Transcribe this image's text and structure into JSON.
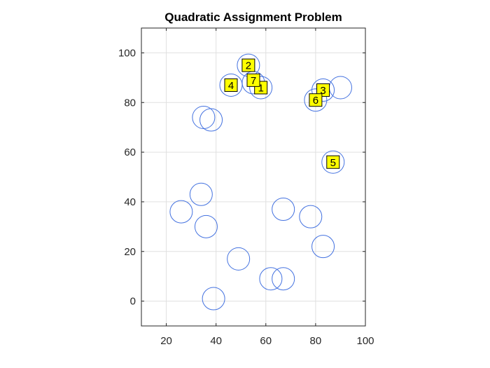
{
  "chart_data": {
    "type": "scatter",
    "title": "Quadratic Assignment Problem",
    "xlabel": "",
    "ylabel": "",
    "xlim": [
      10,
      100
    ],
    "ylim": [
      -10,
      110
    ],
    "xticks": [
      20,
      40,
      60,
      80,
      100
    ],
    "yticks": [
      0,
      20,
      40,
      60,
      80,
      100
    ],
    "grid": true,
    "marker": "circle",
    "colors": {
      "marker": "#4472e0",
      "label_fill": "#ffff00",
      "grid": "#e0e0e0",
      "axis": "#262626"
    },
    "locations": [
      {
        "x": 53,
        "y": 95
      },
      {
        "x": 46,
        "y": 87
      },
      {
        "x": 55,
        "y": 88
      },
      {
        "x": 58,
        "y": 86
      },
      {
        "x": 83,
        "y": 85
      },
      {
        "x": 90,
        "y": 86
      },
      {
        "x": 80,
        "y": 81
      },
      {
        "x": 35,
        "y": 74
      },
      {
        "x": 38,
        "y": 73
      },
      {
        "x": 87,
        "y": 56
      },
      {
        "x": 34,
        "y": 43
      },
      {
        "x": 26,
        "y": 36
      },
      {
        "x": 36,
        "y": 30
      },
      {
        "x": 67,
        "y": 37
      },
      {
        "x": 78,
        "y": 34
      },
      {
        "x": 83,
        "y": 22
      },
      {
        "x": 49,
        "y": 17
      },
      {
        "x": 62,
        "y": 9
      },
      {
        "x": 67,
        "y": 9
      },
      {
        "x": 39,
        "y": 1
      }
    ],
    "assignments": [
      {
        "label": "1",
        "x": 58,
        "y": 86
      },
      {
        "label": "2",
        "x": 53,
        "y": 95
      },
      {
        "label": "3",
        "x": 83,
        "y": 85
      },
      {
        "label": "4",
        "x": 46,
        "y": 87
      },
      {
        "label": "5",
        "x": 87,
        "y": 56
      },
      {
        "label": "6",
        "x": 80,
        "y": 81
      },
      {
        "label": "7",
        "x": 55,
        "y": 89
      }
    ]
  }
}
